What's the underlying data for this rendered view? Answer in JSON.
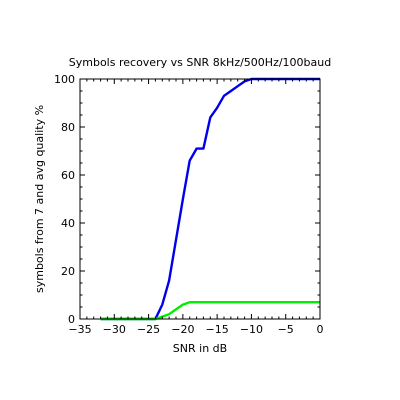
{
  "chart_data": {
    "type": "line",
    "title": "Symbols recovery vs SNR 8kHz/500Hz/100baud",
    "xlabel": "SNR in dB",
    "ylabel": "symbols from 7 and avg quality %",
    "xlim": [
      -35,
      0
    ],
    "ylim": [
      0,
      100
    ],
    "xticks": [
      -35,
      -30,
      -25,
      -20,
      -15,
      -10,
      -5,
      0
    ],
    "yticks": [
      0,
      20,
      40,
      60,
      80,
      100
    ],
    "xtick_labels": [
      "−35",
      "−30",
      "−25",
      "−20",
      "−15",
      "−10",
      "−5",
      "0"
    ],
    "ytick_labels": [
      "0",
      "20",
      "40",
      "60",
      "80",
      "100"
    ],
    "grid": false,
    "series": [
      {
        "color": "#0000ee",
        "x": [
          -32,
          -30,
          -28,
          -26,
          -24,
          -23,
          -22,
          -21,
          -20,
          -19,
          -18,
          -17,
          -16,
          -15,
          -14,
          -13,
          -12,
          -11,
          -10,
          -8,
          -6,
          -4,
          -2,
          0
        ],
        "y": [
          0,
          0,
          0,
          0,
          0,
          6,
          16,
          33,
          50,
          66,
          71,
          71,
          84,
          88,
          93,
          95,
          97,
          99,
          100,
          100,
          100,
          100,
          100,
          100
        ]
      },
      {
        "color": "#00ee00",
        "x": [
          -32,
          -30,
          -28,
          -26,
          -24,
          -23,
          -22,
          -21,
          -20,
          -19,
          -18,
          -17,
          -16,
          -15,
          -14,
          -12,
          -10,
          -8,
          -6,
          -4,
          -2,
          0
        ],
        "y": [
          0,
          0,
          0,
          0,
          0,
          1,
          2,
          4,
          6,
          7,
          7,
          7,
          7,
          7,
          7,
          7,
          7,
          7,
          7,
          7,
          7,
          7
        ]
      }
    ]
  }
}
